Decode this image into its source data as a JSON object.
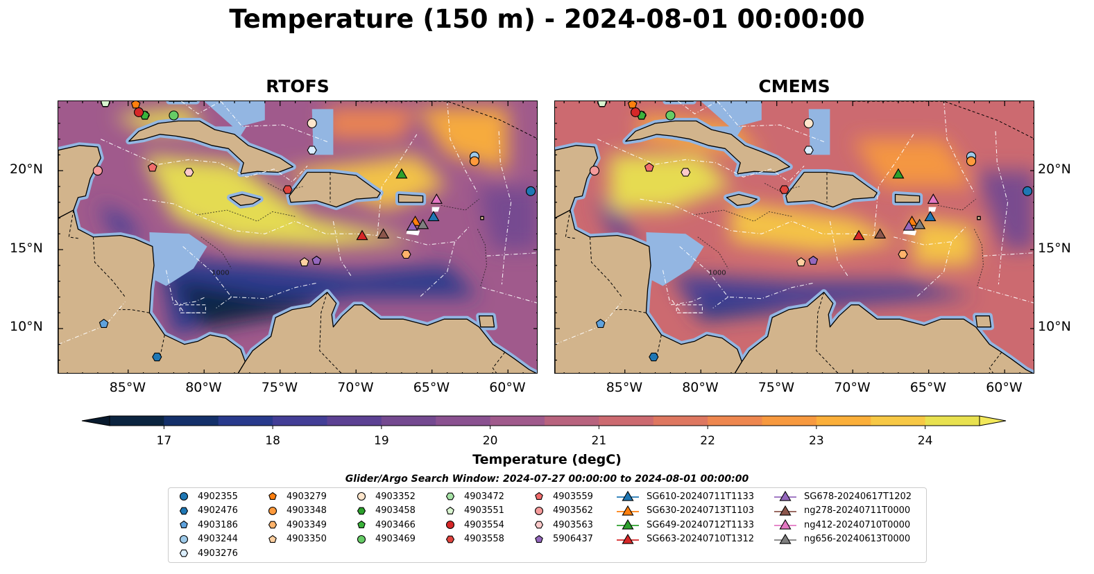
{
  "title": "Temperature (150 m) - 2024-08-01 00:00:00",
  "panels": [
    {
      "name": "rtofs",
      "title": "RTOFS"
    },
    {
      "name": "cmems",
      "title": "CMEMS"
    }
  ],
  "axes": {
    "x_ticks": [
      "85°W",
      "80°W",
      "75°W",
      "70°W",
      "65°W",
      "60°W"
    ],
    "y_ticks": [
      "20°N",
      "15°N",
      "10°N"
    ],
    "contour_label": "1000"
  },
  "colorbar": {
    "label": "Temperature (degC)",
    "ticks": [
      "17",
      "18",
      "19",
      "20",
      "21",
      "22",
      "23",
      "24"
    ],
    "range": [
      16.5,
      24.5
    ],
    "colors": [
      "#0b2440",
      "#14306a",
      "#283a8c",
      "#433e96",
      "#5c4193",
      "#744990",
      "#8a5190",
      "#a05a8c",
      "#b8637e",
      "#cc6a70",
      "#de7760",
      "#ee874f",
      "#f7993f",
      "#fbaf3a",
      "#f7c845",
      "#e8e14f"
    ]
  },
  "search_window": "Glider/Argo Search Window: 2024-07-27 00:00:00 to 2024-08-01 00:00:00",
  "legend": [
    {
      "label": "4902355",
      "marker": "circle",
      "color": "#1f77b4"
    },
    {
      "label": "4902476",
      "marker": "hexagon",
      "color": "#1f77b4"
    },
    {
      "label": "4903186",
      "marker": "pentagon",
      "color": "#5fa2dd"
    },
    {
      "label": "4903244",
      "marker": "circle",
      "color": "#9ecae9"
    },
    {
      "label": "4903276",
      "marker": "hexagon",
      "color": "#dbeeff"
    },
    {
      "label": "4903279",
      "marker": "pentagon",
      "color": "#ff7f0e"
    },
    {
      "label": "4903348",
      "marker": "circle",
      "color": "#ff9a3c"
    },
    {
      "label": "4903349",
      "marker": "hexagon",
      "color": "#ffb36b"
    },
    {
      "label": "4903350",
      "marker": "pentagon",
      "color": "#ffd0a0"
    },
    {
      "label": "4903352",
      "marker": "circle",
      "color": "#ffe6cc"
    },
    {
      "label": "4903458",
      "marker": "hexagon",
      "color": "#2ca02c"
    },
    {
      "label": "4903466",
      "marker": "pentagon",
      "color": "#3bb33b"
    },
    {
      "label": "4903469",
      "marker": "circle",
      "color": "#66cc66"
    },
    {
      "label": "4903472",
      "marker": "hexagon",
      "color": "#a6e3a6"
    },
    {
      "label": "4903551",
      "marker": "pentagon",
      "color": "#d9f5d0"
    },
    {
      "label": "4903554",
      "marker": "circle",
      "color": "#d62728"
    },
    {
      "label": "4903558",
      "marker": "hexagon",
      "color": "#e0443e"
    },
    {
      "label": "4903559",
      "marker": "pentagon",
      "color": "#f06c6c"
    },
    {
      "label": "4903562",
      "marker": "circle",
      "color": "#f59b9b"
    },
    {
      "label": "4903563",
      "marker": "hexagon",
      "color": "#fccaca"
    },
    {
      "label": "5906437",
      "marker": "pentagon",
      "color": "#9467bd"
    },
    {
      "label": "SG610-20240711T1133",
      "marker": "triangle",
      "color": "#1f77b4"
    },
    {
      "label": "SG630-20240713T1103",
      "marker": "triangle",
      "color": "#ff7f0e"
    },
    {
      "label": "SG649-20240712T1133",
      "marker": "triangle",
      "color": "#2ca02c"
    },
    {
      "label": "SG663-20240710T1312",
      "marker": "triangle",
      "color": "#d62728"
    },
    {
      "label": "SG678-20240617T1202",
      "marker": "triangle",
      "color": "#9467bd"
    },
    {
      "label": "ng278-20240711T0000",
      "marker": "triangle",
      "color": "#8c564b"
    },
    {
      "label": "ng412-20240710T0000",
      "marker": "triangle",
      "color": "#e377c2"
    },
    {
      "label": "ng656-20240613T0000",
      "marker": "triangle",
      "color": "#7f7f7f"
    }
  ],
  "markers": [
    {
      "id": "4902355",
      "lon": -58.5,
      "lat": 18.7
    },
    {
      "id": "4902476",
      "lon": -83.1,
      "lat": 8.2
    },
    {
      "id": "4903186",
      "lon": -86.6,
      "lat": 10.3
    },
    {
      "id": "4903244",
      "lon": -62.2,
      "lat": 20.9
    },
    {
      "id": "4903276",
      "lon": -72.9,
      "lat": 21.3
    },
    {
      "id": "4903279",
      "lon": -84.5,
      "lat": 24.2
    },
    {
      "id": "4903348",
      "lon": -62.2,
      "lat": 20.6
    },
    {
      "id": "4903349",
      "lon": -66.7,
      "lat": 14.7
    },
    {
      "id": "4903350",
      "lon": -73.4,
      "lat": 14.2
    },
    {
      "id": "4903352",
      "lon": -72.9,
      "lat": 23.0
    },
    {
      "id": "4903458",
      "lon": -83.9,
      "lat": 23.5
    },
    {
      "id": "4903466",
      "lon": -83.9,
      "lat": 23.5
    },
    {
      "id": "4903469",
      "lon": -82.0,
      "lat": 23.5
    },
    {
      "id": "4903472",
      "lon": -86.5,
      "lat": 24.3
    },
    {
      "id": "4903551",
      "lon": -86.5,
      "lat": 24.3
    },
    {
      "id": "4903554",
      "lon": -84.3,
      "lat": 23.7
    },
    {
      "id": "4903558",
      "lon": -74.5,
      "lat": 18.8
    },
    {
      "id": "4903559",
      "lon": -83.4,
      "lat": 20.2
    },
    {
      "id": "4903562",
      "lon": -87.0,
      "lat": 20.0
    },
    {
      "id": "4903563",
      "lon": -81.0,
      "lat": 19.9
    },
    {
      "id": "5906437",
      "lon": -72.6,
      "lat": 14.3
    },
    {
      "id": "SG610-20240711T1133",
      "lon": -64.9,
      "lat": 17.1
    },
    {
      "id": "SG630-20240713T1103",
      "lon": -66.1,
      "lat": 16.8
    },
    {
      "id": "SG649-20240712T1133",
      "lon": -67.0,
      "lat": 19.8
    },
    {
      "id": "SG663-20240710T1312",
      "lon": -69.6,
      "lat": 15.9
    },
    {
      "id": "SG678-20240617T1202",
      "lon": -66.3,
      "lat": 16.5
    },
    {
      "id": "ng278-20240711T0000",
      "lon": -68.2,
      "lat": 16.0
    },
    {
      "id": "ng412-20240710T0000",
      "lon": -64.7,
      "lat": 18.2
    },
    {
      "id": "ng656-20240613T0000",
      "lon": -65.6,
      "lat": 16.6
    }
  ]
}
